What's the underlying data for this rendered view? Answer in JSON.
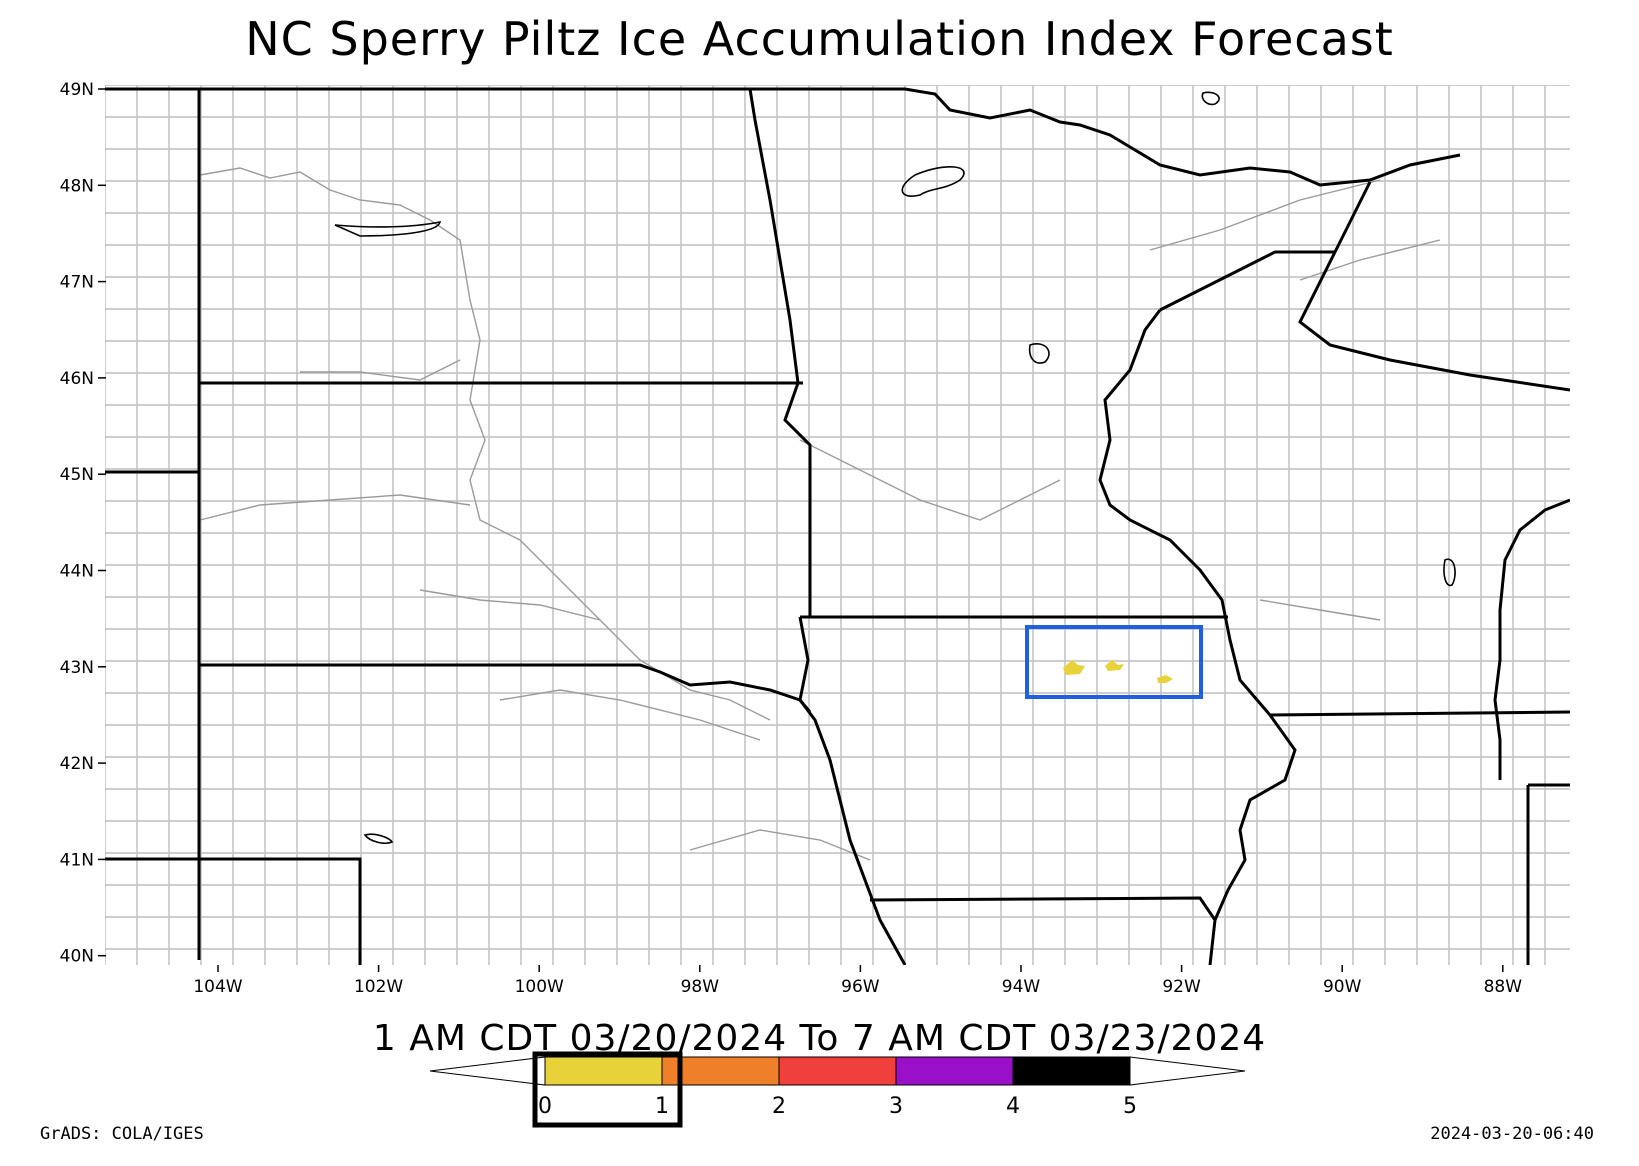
{
  "title": "NC Sperry Piltz Ice Accumulation Index Forecast",
  "valid_period": "1 AM CDT 03/20/2024 To 7 AM CDT 03/23/2024",
  "credit_left": "GrADS: COLA/IGES",
  "credit_right": "2024-03-20-06:40",
  "lat_labels": [
    "49N",
    "48N",
    "47N",
    "46N",
    "45N",
    "44N",
    "43N",
    "42N",
    "41N",
    "40N"
  ],
  "lon_labels": [
    "104W",
    "102W",
    "100W",
    "98W",
    "96W",
    "94W",
    "92W",
    "90W",
    "88W"
  ],
  "legend": {
    "colors": [
      "#e8d23a",
      "#f07f2a",
      "#f0403c",
      "#9a10c8",
      "#000000"
    ],
    "tick_labels": [
      "0",
      "1",
      "2",
      "3",
      "4",
      "5"
    ]
  },
  "annotations": {
    "highlight_box_color": "#1f5fe0",
    "legend_box_color": "#000000"
  }
}
